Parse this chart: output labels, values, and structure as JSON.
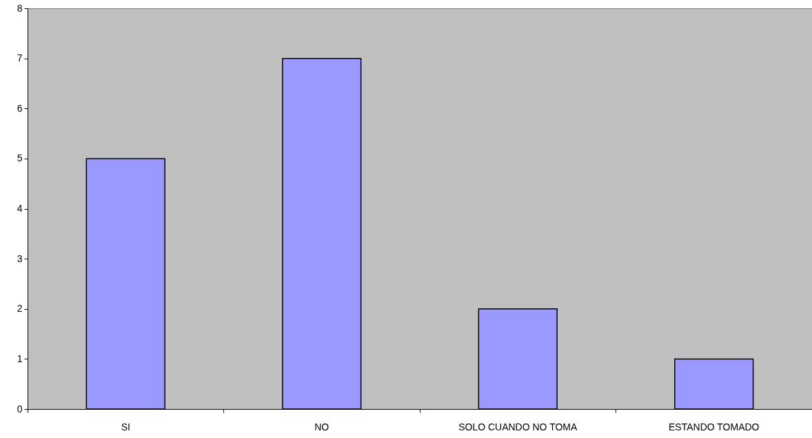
{
  "chart_data": {
    "type": "bar",
    "categories": [
      "SI",
      "NO",
      "SOLO CUANDO NO TOMA",
      "ESTANDO TOMADO"
    ],
    "values": [
      5,
      7,
      2,
      1
    ],
    "color": "#9999ff",
    "ylim": [
      0,
      8
    ],
    "yticks": [
      0,
      1,
      2,
      3,
      4,
      5,
      6,
      7,
      8
    ],
    "grid": false
  }
}
